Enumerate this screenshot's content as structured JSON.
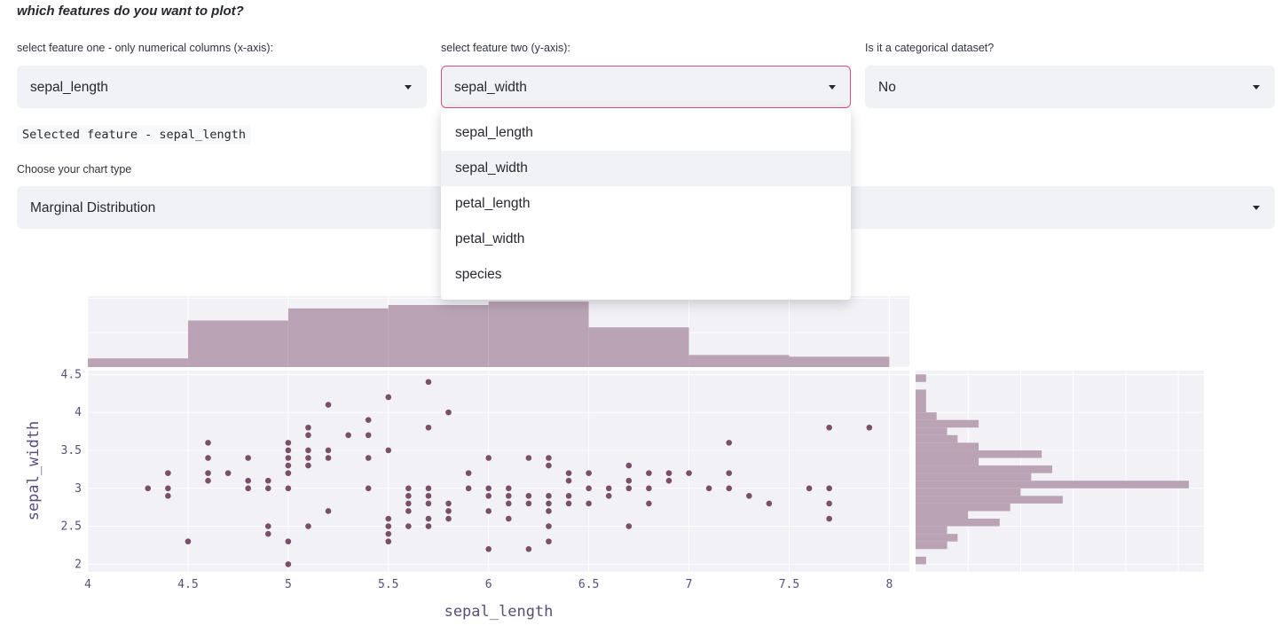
{
  "heading": "which features do you want to plot?",
  "feature_one": {
    "label": "select feature one - only numerical columns (x-axis):",
    "value": "sepal_length"
  },
  "feature_two": {
    "label": "select feature two (y-axis):",
    "value": "sepal_width",
    "options": [
      "sepal_length",
      "sepal_width",
      "petal_length",
      "petal_width",
      "species"
    ],
    "highlighted": "sepal_width"
  },
  "categorical": {
    "label": "Is it a categorical dataset?",
    "value": "No"
  },
  "selected_feature_text": "Selected feature - sepal_length",
  "chart_type": {
    "label": "Choose your chart type",
    "value": "Marginal Distribution"
  },
  "colors": {
    "accent": "#e0507a",
    "marker": "#7a5068",
    "bar": "#b9a3b4",
    "plot_bg": "#f1f1f6",
    "axis_text": "#5a4d7a"
  },
  "chart_data": {
    "type": "scatter",
    "xlabel": "sepal_length",
    "ylabel": "sepal_width",
    "xlim": [
      4,
      8.1
    ],
    "ylim": [
      1.9,
      4.55
    ],
    "x_ticks": [
      "4",
      "4.5",
      "5",
      "5.5",
      "6",
      "6.5",
      "7",
      "7.5",
      "8"
    ],
    "y_ticks": [
      "2",
      "2.5",
      "3",
      "3.5",
      "4",
      "4.5"
    ],
    "grid": true,
    "points": [
      [
        4.3,
        3.0
      ],
      [
        4.4,
        3.2
      ],
      [
        4.4,
        3.0
      ],
      [
        4.4,
        2.9
      ],
      [
        4.5,
        2.3
      ],
      [
        4.6,
        3.6
      ],
      [
        4.6,
        3.4
      ],
      [
        4.6,
        3.2
      ],
      [
        4.6,
        3.1
      ],
      [
        4.7,
        3.2
      ],
      [
        4.8,
        3.4
      ],
      [
        4.8,
        3.1
      ],
      [
        4.8,
        3.0
      ],
      [
        4.9,
        3.1
      ],
      [
        4.9,
        3.0
      ],
      [
        4.9,
        2.5
      ],
      [
        4.9,
        2.4
      ],
      [
        5.0,
        3.6
      ],
      [
        5.0,
        3.5
      ],
      [
        5.0,
        3.4
      ],
      [
        5.0,
        3.3
      ],
      [
        5.0,
        3.2
      ],
      [
        5.0,
        3.0
      ],
      [
        5.0,
        2.3
      ],
      [
        5.0,
        2.0
      ],
      [
        5.1,
        3.8
      ],
      [
        5.1,
        3.7
      ],
      [
        5.1,
        3.5
      ],
      [
        5.1,
        3.4
      ],
      [
        5.1,
        3.3
      ],
      [
        5.1,
        2.5
      ],
      [
        5.2,
        4.1
      ],
      [
        5.2,
        3.5
      ],
      [
        5.2,
        3.4
      ],
      [
        5.2,
        2.7
      ],
      [
        5.3,
        3.7
      ],
      [
        5.4,
        3.9
      ],
      [
        5.4,
        3.7
      ],
      [
        5.4,
        3.4
      ],
      [
        5.4,
        3.0
      ],
      [
        5.5,
        4.2
      ],
      [
        5.5,
        3.5
      ],
      [
        5.5,
        2.6
      ],
      [
        5.5,
        2.5
      ],
      [
        5.5,
        2.4
      ],
      [
        5.5,
        2.3
      ],
      [
        5.6,
        3.0
      ],
      [
        5.6,
        2.9
      ],
      [
        5.6,
        2.8
      ],
      [
        5.6,
        2.7
      ],
      [
        5.6,
        2.5
      ],
      [
        5.7,
        4.4
      ],
      [
        5.7,
        3.8
      ],
      [
        5.7,
        3.0
      ],
      [
        5.7,
        2.9
      ],
      [
        5.7,
        2.8
      ],
      [
        5.7,
        2.6
      ],
      [
        5.7,
        2.5
      ],
      [
        5.8,
        4.0
      ],
      [
        5.8,
        2.8
      ],
      [
        5.8,
        2.7
      ],
      [
        5.8,
        2.6
      ],
      [
        5.9,
        3.2
      ],
      [
        5.9,
        3.0
      ],
      [
        6.0,
        3.4
      ],
      [
        6.0,
        3.0
      ],
      [
        6.0,
        2.9
      ],
      [
        6.0,
        2.7
      ],
      [
        6.0,
        2.2
      ],
      [
        6.1,
        3.0
      ],
      [
        6.1,
        2.9
      ],
      [
        6.1,
        2.8
      ],
      [
        6.1,
        2.6
      ],
      [
        6.2,
        3.4
      ],
      [
        6.2,
        2.9
      ],
      [
        6.2,
        2.8
      ],
      [
        6.2,
        2.2
      ],
      [
        6.3,
        3.4
      ],
      [
        6.3,
        3.3
      ],
      [
        6.3,
        2.9
      ],
      [
        6.3,
        2.8
      ],
      [
        6.3,
        2.7
      ],
      [
        6.3,
        2.5
      ],
      [
        6.3,
        2.3
      ],
      [
        6.4,
        3.2
      ],
      [
        6.4,
        3.1
      ],
      [
        6.4,
        2.9
      ],
      [
        6.4,
        2.8
      ],
      [
        6.5,
        3.2
      ],
      [
        6.5,
        3.0
      ],
      [
        6.5,
        2.8
      ],
      [
        6.6,
        3.0
      ],
      [
        6.6,
        2.9
      ],
      [
        6.7,
        3.3
      ],
      [
        6.7,
        3.1
      ],
      [
        6.7,
        3.0
      ],
      [
        6.7,
        2.5
      ],
      [
        6.8,
        3.2
      ],
      [
        6.8,
        3.0
      ],
      [
        6.8,
        2.8
      ],
      [
        6.9,
        3.2
      ],
      [
        6.9,
        3.1
      ],
      [
        7.0,
        3.2
      ],
      [
        7.1,
        3.0
      ],
      [
        7.2,
        3.6
      ],
      [
        7.2,
        3.2
      ],
      [
        7.2,
        3.0
      ],
      [
        7.3,
        2.9
      ],
      [
        7.4,
        2.8
      ],
      [
        7.6,
        3.0
      ],
      [
        7.7,
        3.8
      ],
      [
        7.7,
        3.0
      ],
      [
        7.7,
        2.8
      ],
      [
        7.7,
        2.6
      ],
      [
        7.9,
        3.8
      ]
    ],
    "x_histogram": {
      "bin_edges": [
        4,
        4.5,
        5,
        5.5,
        6,
        6.5,
        7,
        7.5,
        8
      ],
      "counts": [
        5,
        27,
        34,
        36,
        38,
        23,
        7,
        6
      ]
    },
    "y_histogram": {
      "bin_edges": [
        2.0,
        2.1,
        2.2,
        2.3,
        2.4,
        2.5,
        2.6,
        2.7,
        2.8,
        2.9,
        3.0,
        3.1,
        3.2,
        3.3,
        3.4,
        3.5,
        3.6,
        3.7,
        3.8,
        3.9,
        4.0,
        4.1,
        4.2,
        4.3,
        4.4,
        4.5
      ],
      "counts": [
        1,
        0,
        3,
        4,
        3,
        8,
        5,
        9,
        14,
        10,
        26,
        11,
        13,
        6,
        12,
        6,
        4,
        3,
        6,
        2,
        1,
        1,
        1,
        0,
        1
      ]
    }
  }
}
